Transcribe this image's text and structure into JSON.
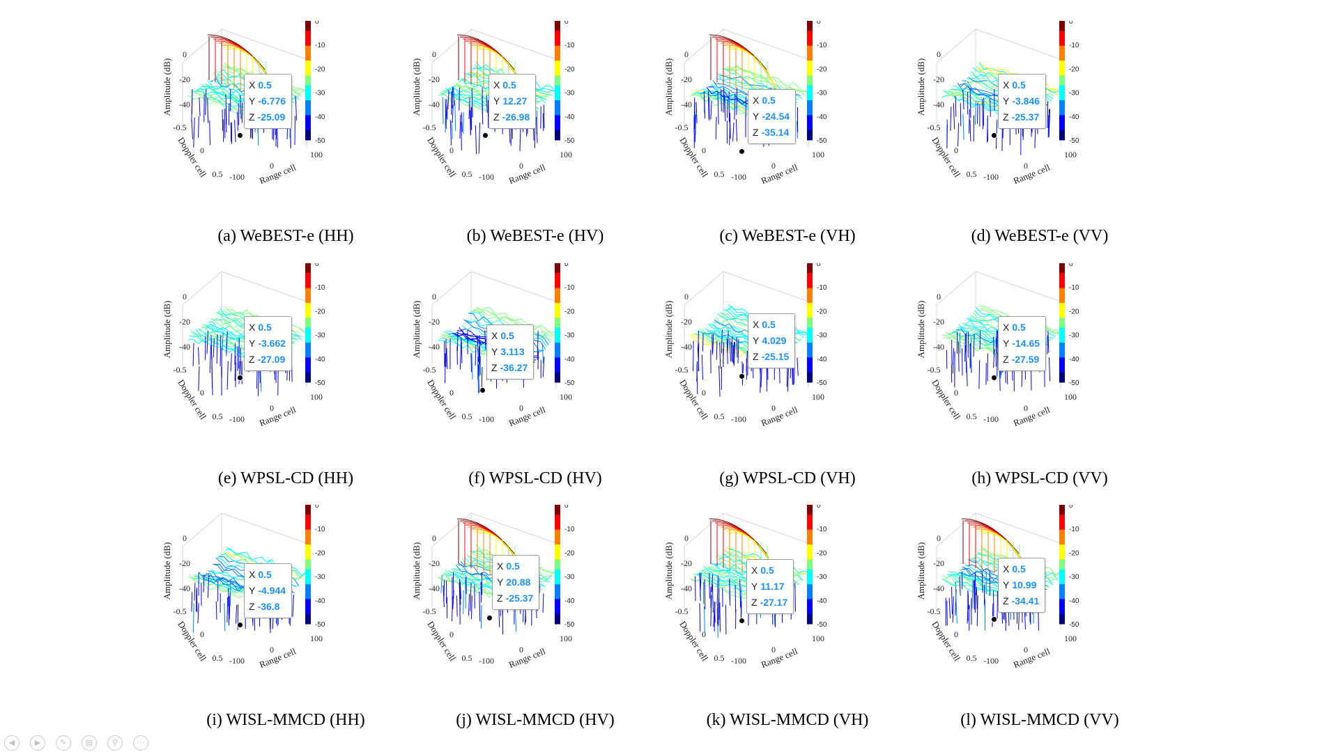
{
  "axis_labels": {
    "z": "Amplitude (dB)",
    "doppler": "Doppler cell",
    "range": "Range cell"
  },
  "tick_labels": {
    "z": [
      "0",
      "-20",
      "-40"
    ],
    "doppler": [
      "-0.5",
      "0",
      "0.5"
    ],
    "range": [
      "-100",
      "0",
      "100"
    ],
    "colorbar": [
      "0",
      "-10",
      "-20",
      "-30",
      "-40",
      "-50"
    ]
  },
  "colormap": [
    "#00007f",
    "#0000ff",
    "#007fff",
    "#00ffff",
    "#7fff7f",
    "#ffff00",
    "#ff7f00",
    "#ff0000",
    "#7f0000"
  ],
  "datatip_keys": [
    "X",
    "Y",
    "Z"
  ],
  "panels": [
    {
      "caption": "(a) WeBEST-e (HH)",
      "tip": [
        "0.5",
        "-6.776",
        "-25.09"
      ]
    },
    {
      "caption": "(b) WeBEST-e (HV)",
      "tip": [
        "0.5",
        "12.27",
        "-26.98"
      ]
    },
    {
      "caption": "(c) WeBEST-e (VH)",
      "tip": [
        "0.5",
        "-24.54",
        "-35.14"
      ]
    },
    {
      "caption": "(d) WeBEST-e (VV)",
      "tip": [
        "0.5",
        "-3.846",
        "-25.37"
      ]
    },
    {
      "caption": "(e) WPSL-CD (HH)",
      "tip": [
        "0.5",
        "-3.662",
        "-27.09"
      ]
    },
    {
      "caption": "(f) WPSL-CD (HV)",
      "tip": [
        "0.5",
        "3.113",
        "-36.27"
      ]
    },
    {
      "caption": "(g) WPSL-CD (VH)",
      "tip": [
        "0.5",
        "4.029",
        "-25.15"
      ]
    },
    {
      "caption": "(h) WPSL-CD (VV)",
      "tip": [
        "0.5",
        "-14.65",
        "-27.59"
      ]
    },
    {
      "caption": "(i) WISL-MMCD (HH)",
      "tip": [
        "0.5",
        "-4.944",
        "-36.8"
      ]
    },
    {
      "caption": "(j) WISL-MMCD (HV)",
      "tip": [
        "0.5",
        "20.88",
        "-25.37"
      ]
    },
    {
      "caption": "(k) WISL-MMCD (VH)",
      "tip": [
        "0.5",
        "11.17",
        "-27.17"
      ]
    },
    {
      "caption": "(l) WISL-MMCD (VV)",
      "tip": [
        "0.5",
        "10.99",
        "-34.41"
      ]
    }
  ],
  "nav_buttons": [
    {
      "name": "previous-slide-icon",
      "glyph": "◀"
    },
    {
      "name": "next-slide-icon",
      "glyph": "▶"
    },
    {
      "name": "pen-icon",
      "glyph": "✎"
    },
    {
      "name": "slides-icon",
      "glyph": "▤"
    },
    {
      "name": "zoom-icon",
      "glyph": "⚲"
    },
    {
      "name": "more-options-icon",
      "glyph": "⋯"
    }
  ]
}
